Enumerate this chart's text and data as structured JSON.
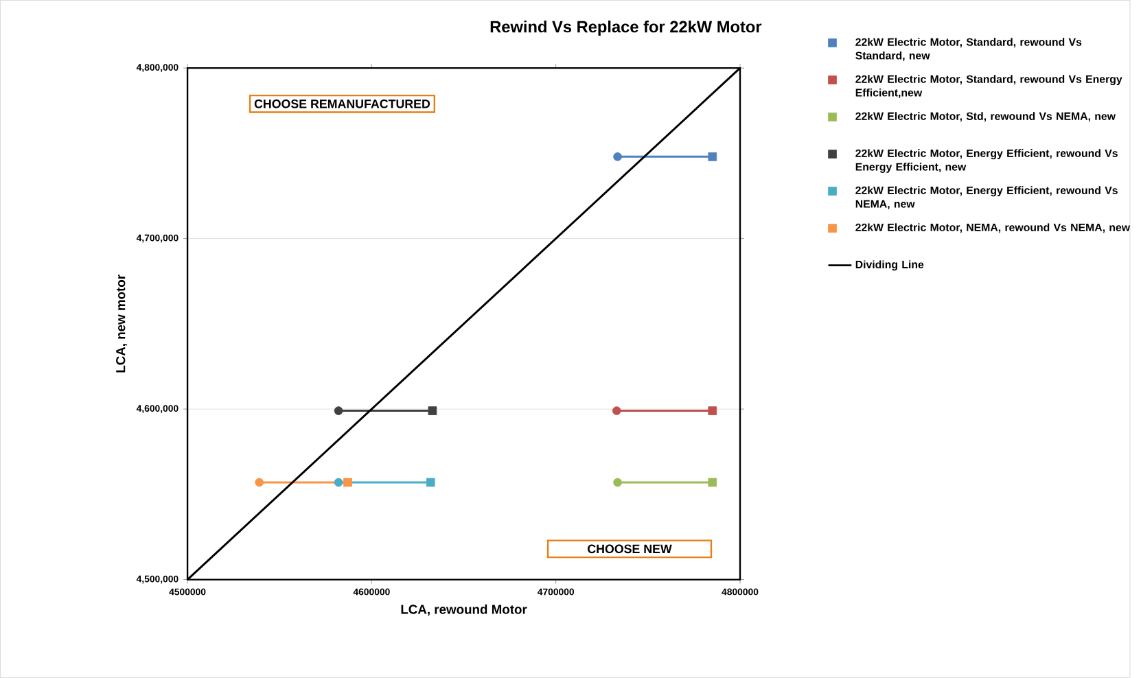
{
  "chart_data": {
    "type": "line",
    "title": "Rewind Vs Replace for 22kW Motor",
    "xlabel": "LCA, rewound Motor",
    "ylabel": "LCA, new motor",
    "xlim": [
      4500000,
      4800000
    ],
    "xticks": [
      4500000,
      4600000,
      4700000,
      4800000
    ],
    "ylim": [
      4500000,
      4800000
    ],
    "yticks": [
      {
        "value": 4500000,
        "label": "4,500,000"
      },
      {
        "value": 4600000,
        "label": "4,600,000"
      },
      {
        "value": 4700000,
        "label": "4,700,000"
      },
      {
        "value": 4800000,
        "label": "4,800,000"
      }
    ],
    "grid": "y",
    "legend": "right",
    "annotations": [
      "CHOOSE REMANUFACTURED",
      "CHOOSE NEW"
    ],
    "series": [
      {
        "name": "22kW Electric Motor, Standard, rewound Vs Standard, new",
        "color": "#4f81bd",
        "x": [
          4733500,
          4785000
        ],
        "values": [
          4748000,
          4748000
        ],
        "marker": [
          "circle",
          "square"
        ]
      },
      {
        "name": "22kW Electric Motor, Standard, rewound Vs Energy Efficient,new",
        "color": "#c0504d",
        "x": [
          4733000,
          4785000
        ],
        "values": [
          4599000,
          4599000
        ],
        "marker": [
          "circle",
          "square"
        ]
      },
      {
        "name": "22kW Electric Motor, Std, rewound Vs NEMA, new",
        "color": "#9bbb59",
        "x": [
          4733500,
          4785000
        ],
        "values": [
          4557000,
          4557000
        ],
        "marker": [
          "circle",
          "square"
        ]
      },
      {
        "name": "22kW Electric Motor, Energy Efficient, rewound Vs Energy Efficient, new",
        "color": "#404040",
        "x": [
          4582000,
          4633000
        ],
        "values": [
          4599000,
          4599000
        ],
        "marker": [
          "circle",
          "square"
        ]
      },
      {
        "name": "22kW Electric Motor, Energy Efficient, rewound Vs NEMA, new",
        "color": "#4bacc6",
        "x": [
          4582000,
          4632000
        ],
        "values": [
          4557000,
          4557000
        ],
        "marker": [
          "circle",
          "square"
        ]
      },
      {
        "name": "22kW Electric Motor, NEMA, rewound Vs NEMA, new",
        "color": "#f79646",
        "x": [
          4539000,
          4587000
        ],
        "values": [
          4557000,
          4557000
        ],
        "marker": [
          "circle",
          "square"
        ]
      },
      {
        "name": "Dividing Line",
        "color": "#000000",
        "x": [
          4500000,
          4800000
        ],
        "values": [
          4500000,
          4800000
        ],
        "marker": "none"
      }
    ]
  }
}
